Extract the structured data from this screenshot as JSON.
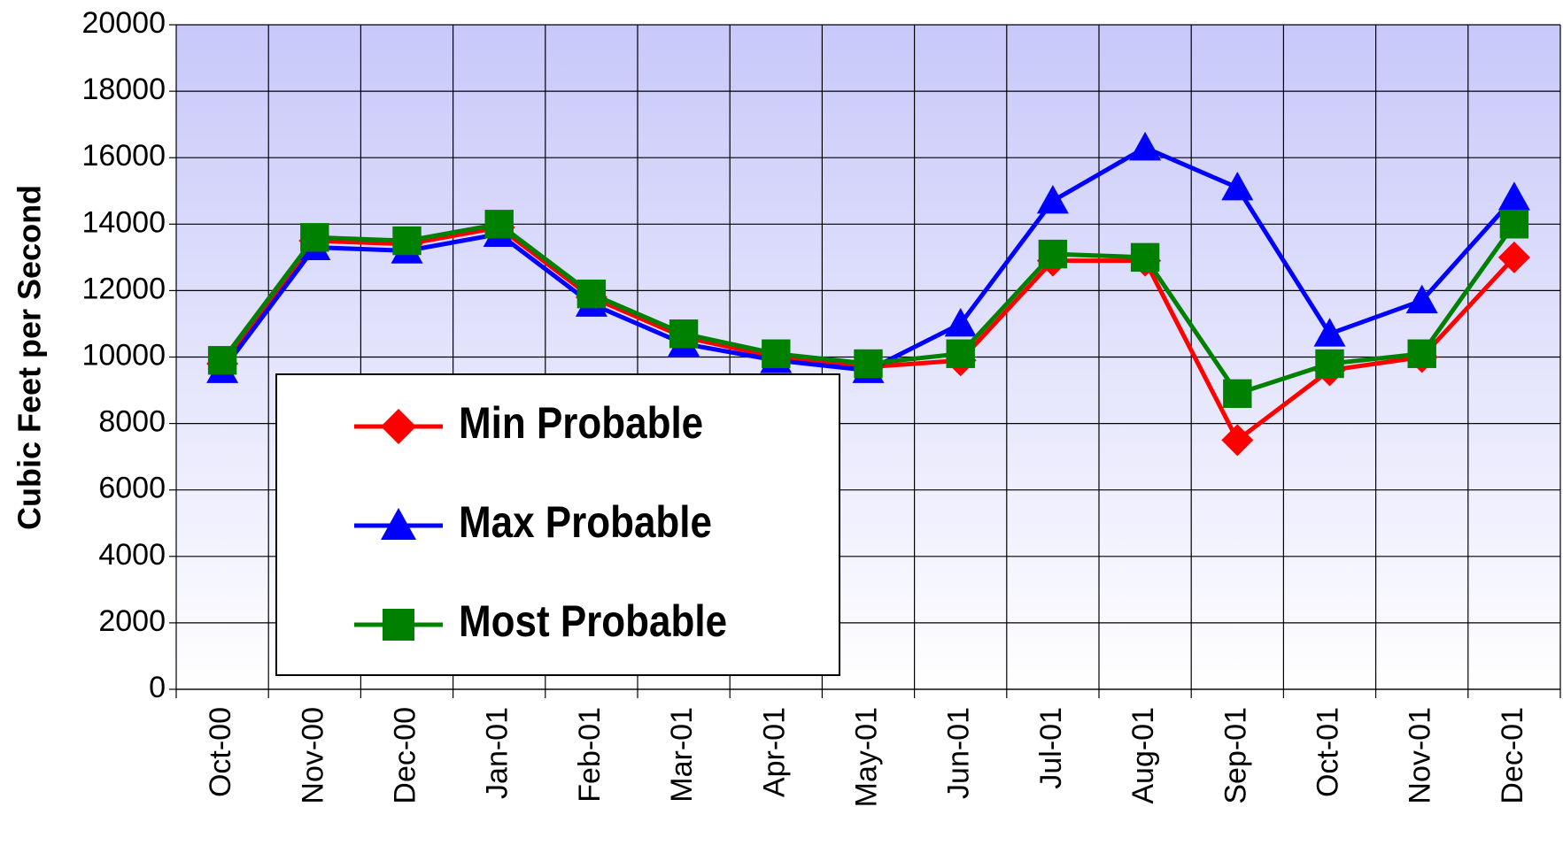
{
  "chart_data": {
    "type": "line",
    "y_axis_label": "Cubic Feet per Second",
    "categories": [
      "Oct-00",
      "Nov-00",
      "Dec-00",
      "Jan-01",
      "Feb-01",
      "Mar-01",
      "Apr-01",
      "May-01",
      "Jun-01",
      "Jul-01",
      "Aug-01",
      "Sep-01",
      "Oct-01",
      "Nov-01",
      "Dec-01"
    ],
    "series": [
      {
        "name": "Min Probable",
        "color": "#ff0000",
        "marker": "diamond",
        "values": [
          9800,
          13500,
          13400,
          13900,
          11800,
          10600,
          10000,
          9700,
          9900,
          12900,
          12900,
          7500,
          9600,
          10000,
          13000
        ]
      },
      {
        "name": "Max Probable",
        "color": "#0000ff",
        "marker": "triangle",
        "values": [
          9600,
          13300,
          13200,
          13700,
          11600,
          10400,
          9900,
          9600,
          11000,
          14700,
          16300,
          15100,
          10700,
          11700,
          14800
        ]
      },
      {
        "name": "Most Probable",
        "color": "#008000",
        "marker": "square",
        "values": [
          9900,
          13600,
          13500,
          14000,
          11900,
          10700,
          10100,
          9800,
          10100,
          13100,
          13000,
          8900,
          9800,
          10100,
          14000
        ]
      }
    ],
    "ylim": [
      0,
      20000
    ],
    "yticks": [
      0,
      2000,
      4000,
      6000,
      8000,
      10000,
      12000,
      14000,
      16000,
      18000,
      20000
    ],
    "grid": true,
    "legend": "lower left"
  }
}
